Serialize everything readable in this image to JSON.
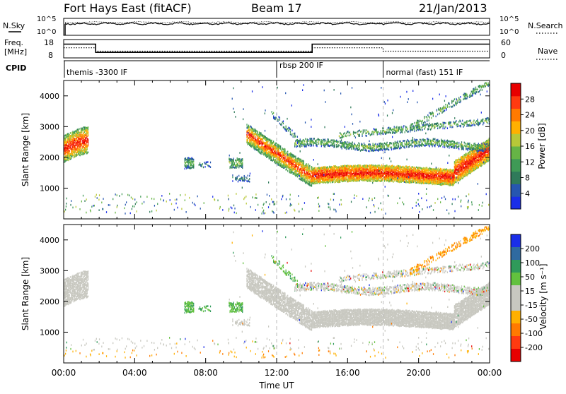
{
  "header": {
    "station": "Fort Hays East (fitACF)",
    "beam": "Beam 17",
    "date": "21/Jan/2013"
  },
  "left_labels": {
    "nsky": "N.Sky",
    "freq": "Freq.",
    "freq_unit": "[MHz]",
    "cpid": "CPID"
  },
  "right_labels": {
    "nsearch": "N.Search",
    "nave": "Nave"
  },
  "noise_ticks": {
    "top": "10^5",
    "bottom": "10^0"
  },
  "freq_ticks": {
    "top": "18",
    "bottom": "8"
  },
  "nave_ticks": {
    "top": "60",
    "bottom": "0"
  },
  "cpid_modes": [
    {
      "start_hour": 0,
      "label": "themis -3300 IF"
    },
    {
      "start_hour": 12,
      "label": "rbsp 200 IF"
    },
    {
      "start_hour": 18,
      "label": "normal (fast) 151 IF"
    }
  ],
  "chart_data": [
    {
      "type": "line",
      "panel": "noise",
      "series": [
        {
          "name": "N.Sky",
          "style": "solid"
        },
        {
          "name": "N.Search",
          "style": "dotted"
        }
      ]
    },
    {
      "type": "line",
      "panel": "frequency",
      "series": [
        {
          "name": "Freq.",
          "style": "solid",
          "segments": [
            {
              "x0": 0.0,
              "x1": 1.8,
              "y": 15.5
            },
            {
              "x0": 1.8,
              "x1": 14.0,
              "y": 11.0
            },
            {
              "x0": 14.0,
              "x1": 24.0,
              "y": 15.5
            }
          ]
        },
        {
          "name": "Nave",
          "style": "dotted",
          "segments": [
            {
              "x0": 0.0,
              "x1": 1.8,
              "y": 33
            },
            {
              "x0": 1.8,
              "x1": 14.0,
              "y": 22
            },
            {
              "x0": 14.0,
              "x1": 18.0,
              "y": 33
            },
            {
              "x0": 18.0,
              "x1": 24.0,
              "y": 22
            }
          ]
        }
      ]
    },
    {
      "type": "heatmap",
      "panel": "power",
      "xlabel": "",
      "ylabel": "Slant Range [km]",
      "xlim": [
        0,
        24
      ],
      "ylim": [
        0,
        4500
      ],
      "y_ticks": [
        "1000",
        "2000",
        "3000",
        "4000"
      ],
      "colorbar": {
        "label": "Power [dB]",
        "ticks": [
          "4",
          "8",
          "12",
          "16",
          "20",
          "24",
          "28"
        ],
        "colors": [
          "#1a2ee8",
          "#2656b0",
          "#2f7a5a",
          "#3f9a56",
          "#66b446",
          "#b8c838",
          "#ffb000",
          "#ff7a00",
          "#ff3a10",
          "#e80000"
        ]
      }
    },
    {
      "type": "heatmap",
      "panel": "velocity",
      "xlabel": "Time UT",
      "ylabel": "Slant Range [km]",
      "xlim": [
        0,
        24
      ],
      "ylim": [
        0,
        4500
      ],
      "x_ticks": [
        "00:00",
        "04:00",
        "08:00",
        "12:00",
        "16:00",
        "20:00",
        "00:00"
      ],
      "y_ticks": [
        "1000",
        "2000",
        "3000",
        "4000"
      ],
      "colorbar": {
        "label": "Velocity [m s⁻¹]",
        "ticks": [
          "200",
          "100",
          "50",
          "15",
          "-15",
          "-50",
          "-100",
          "-200"
        ],
        "colors": [
          "#1a2ee8",
          "#2f6aa0",
          "#2f9a5a",
          "#62c13e",
          "#c8c8c0",
          "#c8c8c0",
          "#ffb000",
          "#ff7a00",
          "#ff3a10",
          "#e80000"
        ]
      }
    }
  ]
}
